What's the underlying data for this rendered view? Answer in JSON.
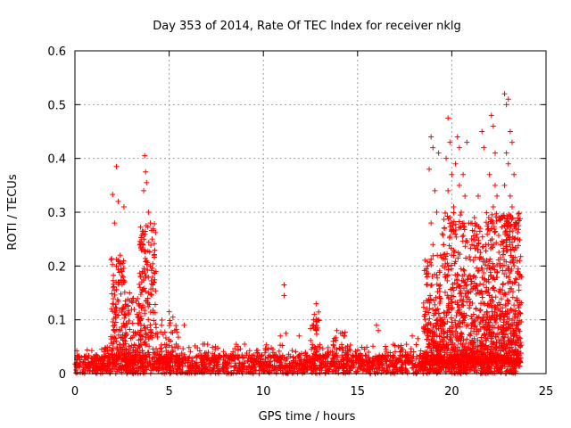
{
  "chart_data": {
    "type": "scatter",
    "title": "Day 353 of 2014, Rate Of TEC Index for receiver nklg",
    "xlabel": "GPS time / hours",
    "ylabel": "ROTI / TECUs",
    "xlim": [
      0,
      25
    ],
    "ylim": [
      0,
      0.6
    ],
    "xticks": [
      0,
      5,
      10,
      15,
      20,
      25
    ],
    "xtick_labels": [
      "0",
      "5",
      "10",
      "15",
      "20",
      "25"
    ],
    "yticks": [
      0,
      0.1,
      0.2,
      0.3,
      0.4,
      0.5,
      0.6
    ],
    "ytick_labels": [
      "0",
      "0.1",
      "0.2",
      "0.3",
      "0.4",
      "0.5",
      "0.6"
    ],
    "grid": true,
    "marker": "+",
    "color": "#ff0000",
    "grid_color": "#a0a0a0",
    "series": [
      {
        "name": "ROTI",
        "points": [
          [
            2.0,
            0.333
          ],
          [
            2.2,
            0.385
          ],
          [
            2.3,
            0.32
          ],
          [
            2.6,
            0.31
          ],
          [
            2.1,
            0.28
          ],
          [
            2.4,
            0.22
          ],
          [
            2.2,
            0.2
          ],
          [
            2.5,
            0.19
          ],
          [
            2.3,
            0.17
          ],
          [
            2.0,
            0.13
          ],
          [
            2.6,
            0.12
          ],
          [
            2.9,
            0.15
          ],
          [
            3.1,
            0.14
          ],
          [
            3.3,
            0.11
          ],
          [
            3.5,
            0.09
          ],
          [
            3.7,
            0.405
          ],
          [
            3.75,
            0.375
          ],
          [
            3.8,
            0.355
          ],
          [
            3.65,
            0.34
          ],
          [
            3.9,
            0.3
          ],
          [
            4.0,
            0.28
          ],
          [
            3.6,
            0.26
          ],
          [
            4.1,
            0.25
          ],
          [
            3.7,
            0.23
          ],
          [
            4.2,
            0.22
          ],
          [
            3.8,
            0.21
          ],
          [
            4.0,
            0.2
          ],
          [
            4.3,
            0.19
          ],
          [
            3.5,
            0.18
          ],
          [
            4.2,
            0.17
          ],
          [
            3.9,
            0.15
          ],
          [
            3.4,
            0.13
          ],
          [
            5.0,
            0.115
          ],
          [
            5.2,
            0.105
          ],
          [
            5.8,
            0.09
          ],
          [
            4.6,
            0.09
          ],
          [
            11.1,
            0.165
          ],
          [
            11.1,
            0.145
          ],
          [
            11.2,
            0.075
          ],
          [
            10.9,
            0.07
          ],
          [
            11.9,
            0.07
          ],
          [
            12.8,
            0.13
          ],
          [
            12.7,
            0.11
          ],
          [
            12.9,
            0.1
          ],
          [
            12.6,
            0.09
          ],
          [
            12.8,
            0.08
          ],
          [
            13.9,
            0.08
          ],
          [
            14.1,
            0.075
          ],
          [
            14.3,
            0.07
          ],
          [
            16.0,
            0.09
          ],
          [
            16.1,
            0.08
          ],
          [
            17.9,
            0.07
          ],
          [
            18.2,
            0.065
          ],
          [
            18.9,
            0.44
          ],
          [
            19.0,
            0.42
          ],
          [
            19.3,
            0.41
          ],
          [
            18.8,
            0.38
          ],
          [
            19.1,
            0.34
          ],
          [
            19.2,
            0.3
          ],
          [
            18.9,
            0.28
          ],
          [
            19.5,
            0.26
          ],
          [
            19.0,
            0.24
          ],
          [
            19.4,
            0.22
          ],
          [
            19.8,
            0.475
          ],
          [
            19.9,
            0.43
          ],
          [
            19.7,
            0.4
          ],
          [
            20.0,
            0.37
          ],
          [
            19.8,
            0.34
          ],
          [
            20.1,
            0.31
          ],
          [
            19.9,
            0.29
          ],
          [
            19.6,
            0.27
          ],
          [
            20.3,
            0.44
          ],
          [
            20.4,
            0.42
          ],
          [
            20.2,
            0.39
          ],
          [
            20.6,
            0.37
          ],
          [
            20.4,
            0.35
          ],
          [
            20.8,
            0.43
          ],
          [
            20.7,
            0.33
          ],
          [
            20.5,
            0.3
          ],
          [
            20.9,
            0.28
          ],
          [
            21.2,
            0.29
          ],
          [
            21.4,
            0.33
          ],
          [
            21.6,
            0.45
          ],
          [
            21.7,
            0.42
          ],
          [
            21.5,
            0.27
          ],
          [
            21.8,
            0.24
          ],
          [
            22.1,
            0.48
          ],
          [
            22.2,
            0.46
          ],
          [
            22.3,
            0.41
          ],
          [
            22.0,
            0.37
          ],
          [
            22.3,
            0.35
          ],
          [
            22.4,
            0.33
          ],
          [
            22.2,
            0.31
          ],
          [
            22.5,
            0.29
          ],
          [
            22.1,
            0.27
          ],
          [
            22.8,
            0.52
          ],
          [
            23.0,
            0.51
          ],
          [
            22.9,
            0.5
          ],
          [
            23.1,
            0.45
          ],
          [
            23.2,
            0.43
          ],
          [
            22.9,
            0.41
          ],
          [
            23.0,
            0.39
          ],
          [
            23.3,
            0.37
          ],
          [
            22.8,
            0.35
          ],
          [
            23.1,
            0.33
          ],
          [
            23.2,
            0.31
          ],
          [
            22.7,
            0.29
          ],
          [
            23.4,
            0.27
          ],
          [
            23.5,
            0.25
          ],
          [
            23.3,
            0.23
          ],
          [
            23.6,
            0.21
          ],
          [
            23.5,
            0.19
          ],
          [
            23.7,
            0.18
          ]
        ]
      }
    ]
  }
}
